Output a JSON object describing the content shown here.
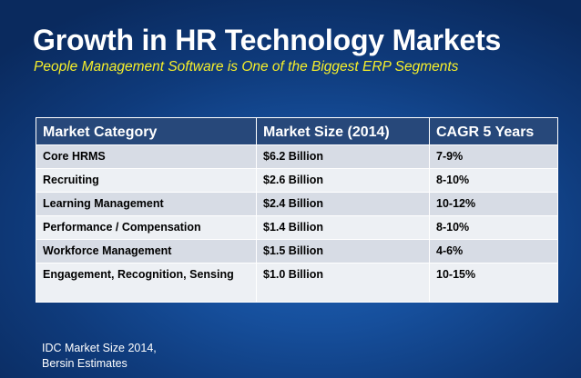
{
  "title": "Growth in HR Technology Markets",
  "subtitle": "People Management Software is One of the Biggest ERP Segments",
  "table": {
    "headers": [
      "Market Category",
      "Market Size (2014)",
      "CAGR 5 Years"
    ],
    "rows": [
      [
        "Core HRMS",
        "$6.2 Billion",
        "7-9%"
      ],
      [
        "Recruiting",
        "$2.6 Billion",
        "8-10%"
      ],
      [
        "Learning Management",
        "$2.4 Billion",
        "10-12%"
      ],
      [
        "Performance / Compensation",
        "$1.4 Billion",
        "8-10%"
      ],
      [
        "Workforce Management",
        "$1.5 Billion",
        "4-6%"
      ],
      [
        "Engagement, Recognition, Sensing",
        "$1.0 Billion",
        "10-15%"
      ]
    ]
  },
  "source": {
    "line1": "IDC Market Size 2014,",
    "line2": "Bersin Estimates"
  }
}
